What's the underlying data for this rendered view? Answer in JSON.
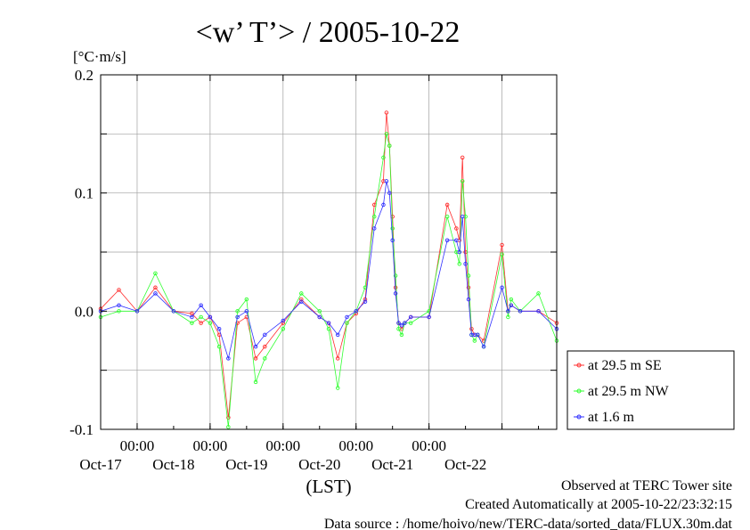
{
  "chart_data": {
    "type": "line",
    "title": "<w’ T’> / 2005-10-22",
    "unit_label": "[°C·m/s]",
    "xlabel": "(LST)",
    "ylim": [
      -0.1,
      0.2
    ],
    "y_ticks": [
      "0.2",
      "0.1",
      "0.0",
      "-0.1"
    ],
    "x_range_days": [
      "2005-10-16T12:00",
      "2005-10-22T18:00"
    ],
    "x_ticks": [
      {
        "time": "00:00",
        "date": "Oct-17"
      },
      {
        "time": "00:00",
        "date": "Oct-18"
      },
      {
        "time": "00:00",
        "date": "Oct-19"
      },
      {
        "time": "00:00",
        "date": "Oct-20"
      },
      {
        "time": "00:00",
        "date": "Oct-21"
      },
      {
        "time": "00:00",
        "date": "Oct-22"
      }
    ],
    "grid": true,
    "legend_position": "right",
    "series": [
      {
        "name": "at 29.5 m SE",
        "color": "#ff3030",
        "x": [
          "2005-10-16T12:00",
          "2005-10-16T18:00",
          "2005-10-17T00:00",
          "2005-10-17T06:00",
          "2005-10-17T12:00",
          "2005-10-17T18:00",
          "2005-10-17T21:00",
          "2005-10-18T00:00",
          "2005-10-18T03:00",
          "2005-10-18T06:00",
          "2005-10-18T09:00",
          "2005-10-18T12:00",
          "2005-10-18T15:00",
          "2005-10-18T18:00",
          "2005-10-19T00:00",
          "2005-10-19T06:00",
          "2005-10-19T12:00",
          "2005-10-19T15:00",
          "2005-10-19T18:00",
          "2005-10-19T21:00",
          "2005-10-20T00:00",
          "2005-10-20T03:00",
          "2005-10-20T06:00",
          "2005-10-20T09:00",
          "2005-10-20T10:00",
          "2005-10-20T11:00",
          "2005-10-20T12:00",
          "2005-10-20T13:00",
          "2005-10-20T14:00",
          "2005-10-20T15:00",
          "2005-10-20T16:00",
          "2005-10-20T18:00",
          "2005-10-21T00:00",
          "2005-10-21T06:00",
          "2005-10-21T09:00",
          "2005-10-21T10:00",
          "2005-10-21T11:00",
          "2005-10-21T12:00",
          "2005-10-21T13:00",
          "2005-10-21T14:00",
          "2005-10-21T15:00",
          "2005-10-21T16:00",
          "2005-10-21T18:00",
          "2005-10-22T00:00",
          "2005-10-22T02:00",
          "2005-10-22T03:00",
          "2005-10-22T06:00",
          "2005-10-22T12:00",
          "2005-10-22T18:00"
        ],
        "values": [
          0.002,
          0.018,
          0.0,
          0.02,
          0.0,
          -0.002,
          -0.01,
          -0.005,
          -0.02,
          -0.09,
          -0.01,
          -0.005,
          -0.04,
          -0.03,
          -0.01,
          0.01,
          -0.005,
          -0.01,
          -0.04,
          -0.01,
          -0.002,
          0.01,
          0.09,
          0.11,
          0.168,
          0.14,
          0.08,
          0.02,
          -0.01,
          -0.015,
          -0.01,
          -0.005,
          -0.005,
          0.09,
          0.07,
          0.06,
          0.13,
          0.05,
          0.02,
          -0.015,
          -0.02,
          -0.02,
          -0.025,
          0.056,
          0.0,
          0.005,
          0.0,
          0.0,
          -0.01
        ]
      },
      {
        "name": "at 29.5 m NW",
        "color": "#30ff30",
        "x": [
          "2005-10-16T12:00",
          "2005-10-16T18:00",
          "2005-10-17T00:00",
          "2005-10-17T06:00",
          "2005-10-17T12:00",
          "2005-10-17T18:00",
          "2005-10-17T21:00",
          "2005-10-18T00:00",
          "2005-10-18T03:00",
          "2005-10-18T06:00",
          "2005-10-18T09:00",
          "2005-10-18T12:00",
          "2005-10-18T15:00",
          "2005-10-18T18:00",
          "2005-10-19T00:00",
          "2005-10-19T06:00",
          "2005-10-19T12:00",
          "2005-10-19T15:00",
          "2005-10-19T18:00",
          "2005-10-19T21:00",
          "2005-10-20T00:00",
          "2005-10-20T03:00",
          "2005-10-20T06:00",
          "2005-10-20T09:00",
          "2005-10-20T10:00",
          "2005-10-20T11:00",
          "2005-10-20T12:00",
          "2005-10-20T13:00",
          "2005-10-20T14:00",
          "2005-10-20T15:00",
          "2005-10-20T16:00",
          "2005-10-20T18:00",
          "2005-10-21T00:00",
          "2005-10-21T06:00",
          "2005-10-21T09:00",
          "2005-10-21T10:00",
          "2005-10-21T11:00",
          "2005-10-21T12:00",
          "2005-10-21T13:00",
          "2005-10-21T14:00",
          "2005-10-21T15:00",
          "2005-10-21T16:00",
          "2005-10-21T18:00",
          "2005-10-22T00:00",
          "2005-10-22T02:00",
          "2005-10-22T03:00",
          "2005-10-22T06:00",
          "2005-10-22T12:00",
          "2005-10-22T18:00"
        ],
        "values": [
          -0.005,
          0.0,
          0.0,
          0.032,
          0.0,
          -0.01,
          -0.005,
          -0.01,
          -0.03,
          -0.098,
          0.0,
          0.01,
          -0.06,
          -0.04,
          -0.015,
          0.015,
          0.0,
          -0.015,
          -0.065,
          -0.01,
          0.0,
          0.02,
          0.08,
          0.13,
          0.15,
          0.14,
          0.07,
          0.03,
          -0.015,
          -0.02,
          -0.01,
          -0.01,
          0.0,
          0.08,
          0.05,
          0.04,
          0.11,
          0.08,
          0.03,
          -0.02,
          -0.025,
          -0.02,
          -0.03,
          0.048,
          -0.005,
          0.01,
          0.0,
          0.015,
          -0.025
        ]
      },
      {
        "name": "at 1.6 m",
        "color": "#3030ff",
        "x": [
          "2005-10-16T12:00",
          "2005-10-16T18:00",
          "2005-10-17T00:00",
          "2005-10-17T06:00",
          "2005-10-17T12:00",
          "2005-10-17T18:00",
          "2005-10-17T21:00",
          "2005-10-18T00:00",
          "2005-10-18T03:00",
          "2005-10-18T06:00",
          "2005-10-18T09:00",
          "2005-10-18T12:00",
          "2005-10-18T15:00",
          "2005-10-18T18:00",
          "2005-10-19T00:00",
          "2005-10-19T06:00",
          "2005-10-19T12:00",
          "2005-10-19T15:00",
          "2005-10-19T18:00",
          "2005-10-19T21:00",
          "2005-10-20T00:00",
          "2005-10-20T03:00",
          "2005-10-20T06:00",
          "2005-10-20T09:00",
          "2005-10-20T10:00",
          "2005-10-20T11:00",
          "2005-10-20T12:00",
          "2005-10-20T13:00",
          "2005-10-20T14:00",
          "2005-10-20T15:00",
          "2005-10-20T16:00",
          "2005-10-20T18:00",
          "2005-10-21T00:00",
          "2005-10-21T06:00",
          "2005-10-21T09:00",
          "2005-10-21T10:00",
          "2005-10-21T11:00",
          "2005-10-21T12:00",
          "2005-10-21T13:00",
          "2005-10-21T14:00",
          "2005-10-21T15:00",
          "2005-10-21T16:00",
          "2005-10-21T18:00",
          "2005-10-22T00:00",
          "2005-10-22T02:00",
          "2005-10-22T03:00",
          "2005-10-22T06:00",
          "2005-10-22T12:00",
          "2005-10-22T18:00"
        ],
        "values": [
          0.0,
          0.005,
          0.0,
          0.015,
          0.0,
          -0.005,
          0.005,
          -0.005,
          -0.015,
          -0.04,
          -0.005,
          0.0,
          -0.03,
          -0.02,
          -0.008,
          0.008,
          -0.005,
          -0.01,
          -0.02,
          -0.005,
          0.0,
          0.008,
          0.07,
          0.09,
          0.11,
          0.1,
          0.06,
          0.015,
          -0.01,
          -0.012,
          -0.01,
          -0.005,
          -0.005,
          0.06,
          0.06,
          0.05,
          0.08,
          0.04,
          0.01,
          -0.02,
          -0.02,
          -0.02,
          -0.03,
          0.02,
          0.0,
          0.005,
          0.0,
          0.0,
          -0.015
        ]
      }
    ]
  },
  "footer": {
    "line1": "Observed at TERC Tower site",
    "line2": "Created Automatically at 2005-10-22/23:32:15",
    "line3": "Data source : /home/hoivo/new/TERC-data/sorted_data/FLUX.30m.dat"
  },
  "colors": {
    "background": "#ffffff",
    "axis": "#000000",
    "grid": "#a0a0a0"
  }
}
